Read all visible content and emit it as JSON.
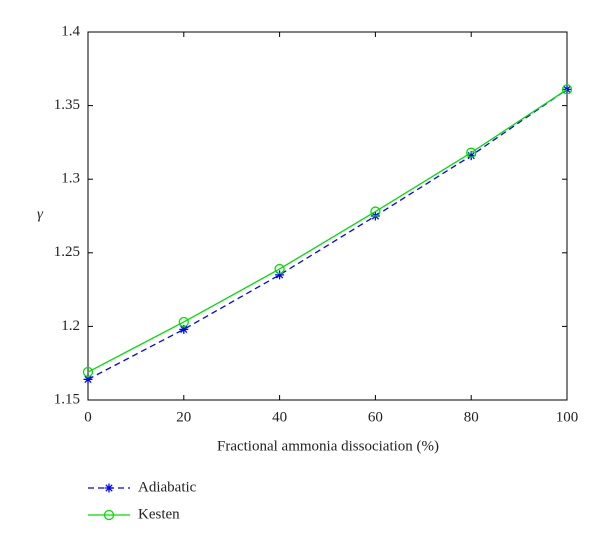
{
  "chart_data": {
    "type": "line",
    "x_label": "Fractional ammonia dissociation (%)",
    "y_label": "γ",
    "x": [
      0,
      20,
      40,
      60,
      80,
      100
    ],
    "series": [
      {
        "name": "Adiabatic",
        "color": "#0000ff",
        "line_style": "dashed",
        "marker": "star",
        "values": [
          1.164,
          1.198,
          1.235,
          1.275,
          1.316,
          1.361
        ]
      },
      {
        "name": "Kesten",
        "color": "#00dd00",
        "line_style": "solid",
        "marker": "circle",
        "values": [
          1.169,
          1.203,
          1.239,
          1.278,
          1.318,
          1.361
        ]
      }
    ],
    "xlim": [
      0,
      100
    ],
    "xticks": [
      0,
      20,
      40,
      60,
      80,
      100
    ],
    "ylim": [
      1.15,
      1.4
    ],
    "yticks": [
      1.15,
      1.2,
      1.25,
      1.3,
      1.35,
      1.4
    ],
    "grid": false,
    "legend": "below-left"
  }
}
